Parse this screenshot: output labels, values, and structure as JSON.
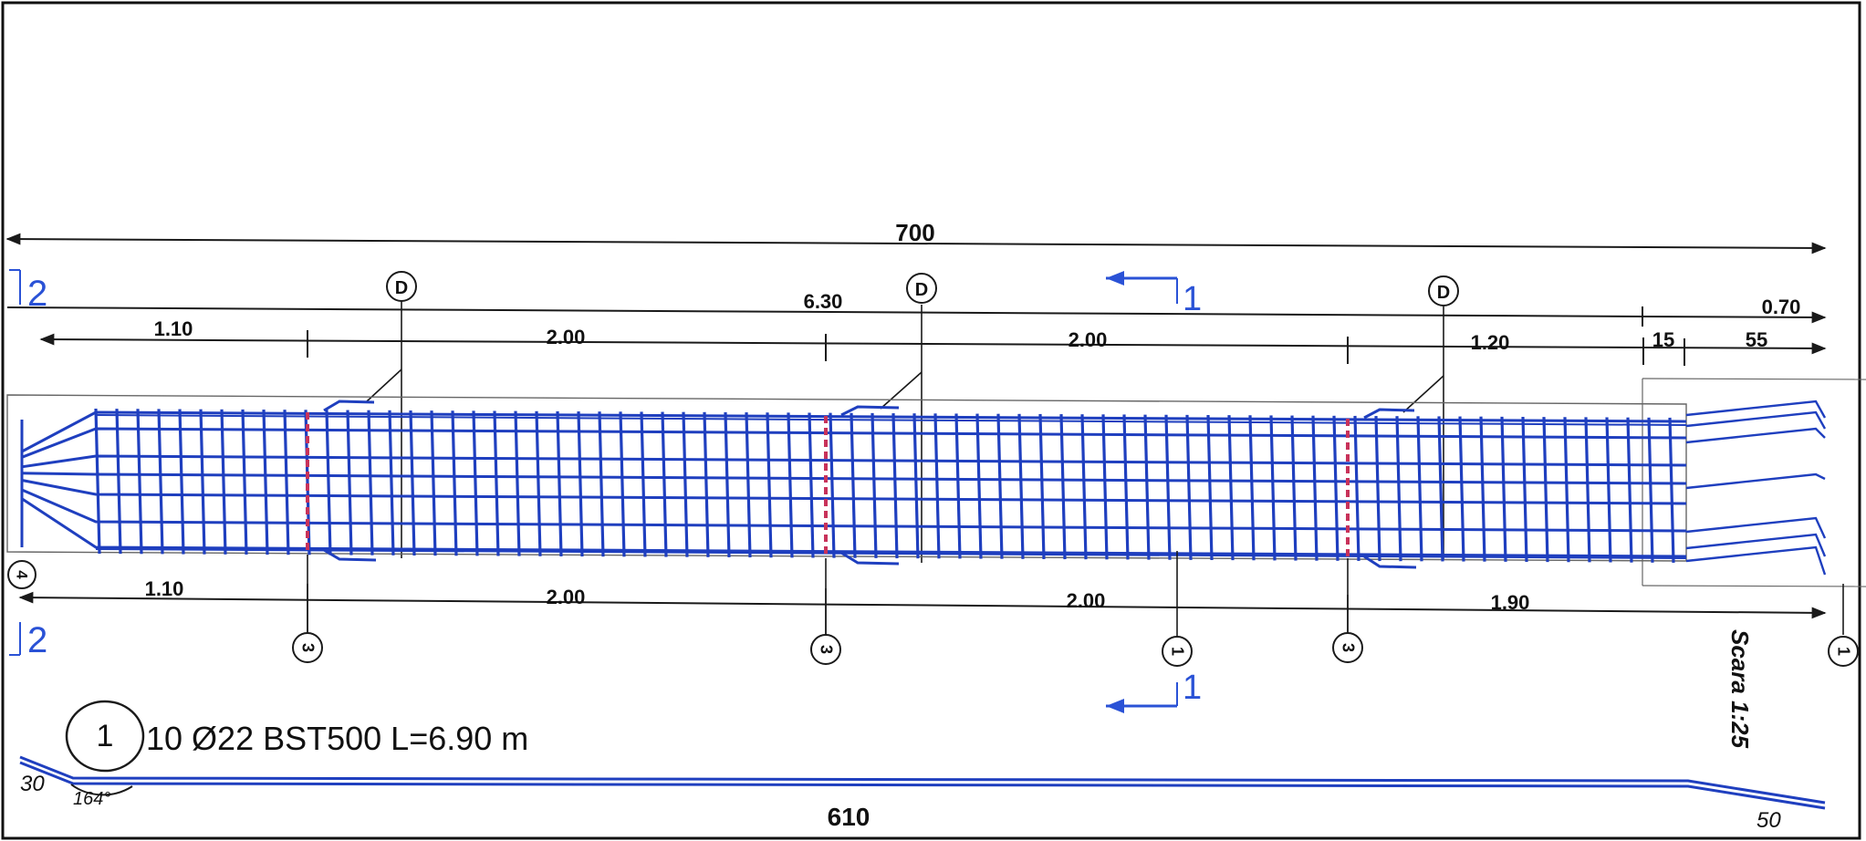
{
  "dimensions": {
    "overall": "700",
    "bar_length": "6.30",
    "end_length": "0.70",
    "top_segments": [
      "1.10",
      "2.00",
      "2.00",
      "1.20",
      "15",
      "55"
    ],
    "bottom_segments": [
      "1.10",
      "2.00",
      "2.00",
      "1.90"
    ]
  },
  "markers": {
    "d_markers": [
      "D",
      "D",
      "D"
    ],
    "bar_marks_bottom": [
      "3",
      "3",
      "1",
      "3",
      "1"
    ],
    "left_mark": "4"
  },
  "section_cuts": {
    "section_2": "2",
    "section_1": "1"
  },
  "scale": "Scara 1:25",
  "bar_schedule": {
    "position": "1",
    "description": "10 Ø22 BST500 L=6.90 m",
    "left_hook_length": "30",
    "bend_angle": "164°",
    "straight_length": "610",
    "right_hook_length": "50"
  },
  "colors": {
    "rebar": "#1f3fbf",
    "splice": "#c8325a",
    "section_arrow": "#2a52d6",
    "dimension_line": "#1a1a1a"
  }
}
